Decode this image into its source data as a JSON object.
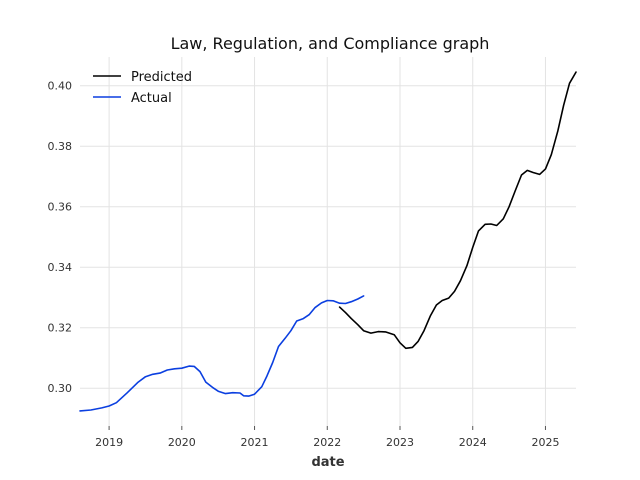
{
  "chart_data": {
    "type": "line",
    "title": "Law, Regulation, and Compliance graph",
    "xlabel": "date",
    "ylabel": "",
    "x_ticks": [
      "2019",
      "2020",
      "2021",
      "2022",
      "2023",
      "2024",
      "2025"
    ],
    "y_ticks": [
      "0.30",
      "0.32",
      "0.34",
      "0.36",
      "0.38",
      "0.40"
    ],
    "xlim": [
      2018.6,
      2025.42
    ],
    "ylim": [
      0.2875,
      0.4095
    ],
    "grid": true,
    "legend_position": "top-left",
    "series": [
      {
        "name": "Actual",
        "color": "#0b3fe0",
        "points": [
          [
            2018.6,
            0.2925
          ],
          [
            2018.75,
            0.2928
          ],
          [
            2018.9,
            0.2935
          ],
          [
            2019.0,
            0.2941
          ],
          [
            2019.1,
            0.2952
          ],
          [
            2019.25,
            0.2985
          ],
          [
            2019.4,
            0.302
          ],
          [
            2019.5,
            0.3038
          ],
          [
            2019.6,
            0.3046
          ],
          [
            2019.7,
            0.305
          ],
          [
            2019.8,
            0.306
          ],
          [
            2019.9,
            0.3064
          ],
          [
            2020.0,
            0.3066
          ],
          [
            2020.1,
            0.3073
          ],
          [
            2020.17,
            0.3072
          ],
          [
            2020.25,
            0.3055
          ],
          [
            2020.33,
            0.302
          ],
          [
            2020.42,
            0.3003
          ],
          [
            2020.5,
            0.299
          ],
          [
            2020.6,
            0.2982
          ],
          [
            2020.7,
            0.2985
          ],
          [
            2020.8,
            0.2984
          ],
          [
            2020.85,
            0.2975
          ],
          [
            2020.92,
            0.2974
          ],
          [
            2021.0,
            0.298
          ],
          [
            2021.1,
            0.3005
          ],
          [
            2021.17,
            0.304
          ],
          [
            2021.25,
            0.3085
          ],
          [
            2021.33,
            0.3138
          ],
          [
            2021.42,
            0.3165
          ],
          [
            2021.5,
            0.319
          ],
          [
            2021.58,
            0.3222
          ],
          [
            2021.67,
            0.323
          ],
          [
            2021.75,
            0.3243
          ],
          [
            2021.83,
            0.3266
          ],
          [
            2021.92,
            0.3282
          ],
          [
            2022.0,
            0.329
          ],
          [
            2022.08,
            0.3289
          ],
          [
            2022.17,
            0.3281
          ],
          [
            2022.25,
            0.328
          ],
          [
            2022.33,
            0.3286
          ],
          [
            2022.42,
            0.3295
          ],
          [
            2022.5,
            0.3305
          ]
        ]
      },
      {
        "name": "Predicted",
        "color": "#000000",
        "points": [
          [
            2022.17,
            0.3268
          ],
          [
            2022.25,
            0.325
          ],
          [
            2022.33,
            0.323
          ],
          [
            2022.42,
            0.321
          ],
          [
            2022.5,
            0.319
          ],
          [
            2022.6,
            0.3182
          ],
          [
            2022.7,
            0.3187
          ],
          [
            2022.8,
            0.3186
          ],
          [
            2022.92,
            0.3177
          ],
          [
            2023.0,
            0.315
          ],
          [
            2023.08,
            0.3132
          ],
          [
            2023.17,
            0.3135
          ],
          [
            2023.25,
            0.3155
          ],
          [
            2023.33,
            0.319
          ],
          [
            2023.42,
            0.324
          ],
          [
            2023.5,
            0.3275
          ],
          [
            2023.58,
            0.329
          ],
          [
            2023.67,
            0.3298
          ],
          [
            2023.75,
            0.332
          ],
          [
            2023.83,
            0.3355
          ],
          [
            2023.92,
            0.3405
          ],
          [
            2024.0,
            0.3465
          ],
          [
            2024.08,
            0.352
          ],
          [
            2024.17,
            0.3542
          ],
          [
            2024.25,
            0.3543
          ],
          [
            2024.33,
            0.3538
          ],
          [
            2024.42,
            0.356
          ],
          [
            2024.5,
            0.36
          ],
          [
            2024.58,
            0.365
          ],
          [
            2024.67,
            0.3705
          ],
          [
            2024.75,
            0.372
          ],
          [
            2024.83,
            0.3713
          ],
          [
            2024.92,
            0.3707
          ],
          [
            2025.0,
            0.3725
          ],
          [
            2025.08,
            0.3772
          ],
          [
            2025.17,
            0.385
          ],
          [
            2025.25,
            0.3935
          ],
          [
            2025.33,
            0.4008
          ],
          [
            2025.42,
            0.4045
          ]
        ]
      }
    ]
  }
}
